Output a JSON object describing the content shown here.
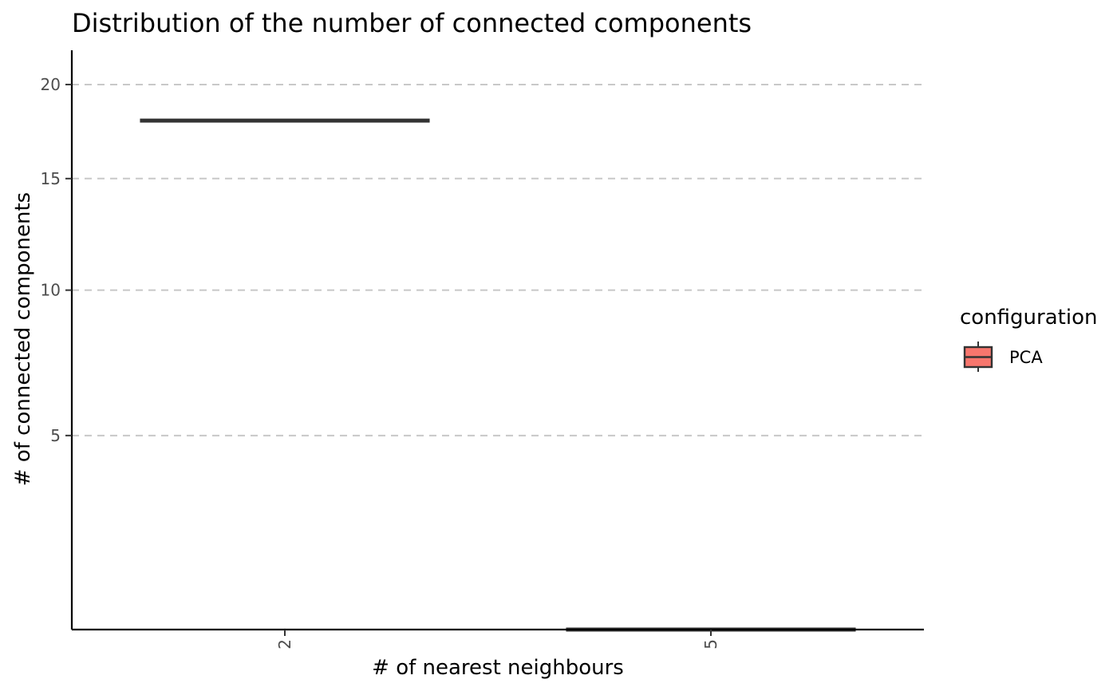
{
  "chart_data": {
    "type": "boxplot",
    "title": "Distribution of the number of connected components",
    "xlabel": "# of nearest neighbours",
    "ylabel": "# of connected components",
    "y_scale": "sqrt",
    "ylim": [
      1,
      22
    ],
    "y_ticks": [
      5,
      10,
      15,
      20
    ],
    "grid": "horizontal-dashed",
    "categories": [
      "2",
      "5"
    ],
    "series": [
      {
        "name": "PCA",
        "color": "#F8766D",
        "values": [
          18,
          1
        ]
      }
    ],
    "legend": {
      "title": "configuration",
      "position": "right",
      "entries": [
        "PCA"
      ]
    }
  }
}
